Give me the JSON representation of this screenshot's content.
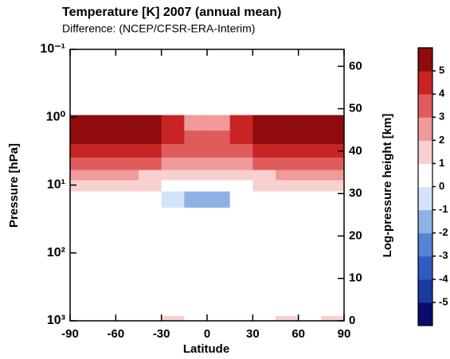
{
  "chart_data": {
    "type": "contour",
    "title": "Temperature [K] 2007 (annual mean)",
    "subtitle": "Difference: (NCEP/CFSR-ERA-Interim)",
    "xlabel": "Latitude",
    "ylabel": "Pressure [hPa]",
    "y2label": "Log-pressure height [km]",
    "log_y": true,
    "x": [
      -82.5,
      -67.5,
      -52.5,
      -37.5,
      -22.5,
      -7.5,
      7.5,
      22.5,
      37.5,
      52.5,
      67.5,
      82.5
    ],
    "y": [
      1000,
      700,
      300,
      100,
      30,
      15,
      10,
      7,
      5,
      3,
      2,
      1.2
    ],
    "z": [
      [
        0,
        0,
        0.5,
        0,
        1.2,
        0,
        0,
        0,
        0,
        1.2,
        0,
        1.1
      ],
      [
        0,
        0,
        0,
        0,
        0,
        0,
        0,
        0,
        0,
        0,
        0,
        0
      ],
      [
        0,
        0,
        0,
        0,
        0,
        0,
        0,
        0,
        0,
        0,
        0,
        0
      ],
      [
        0,
        0,
        0,
        0,
        0,
        0,
        0,
        0,
        0,
        0,
        0,
        0
      ],
      [
        0,
        0,
        0,
        0,
        0,
        0,
        0,
        0,
        0,
        0,
        0,
        0
      ],
      [
        0,
        0,
        0,
        0,
        -0.5,
        -1.2,
        -1.2,
        0,
        0,
        0,
        0,
        0
      ],
      [
        1.2,
        1.2,
        1.2,
        1,
        0.8,
        0.5,
        0.5,
        0.8,
        1,
        1.2,
        1.2,
        1.2
      ],
      [
        2.2,
        2.2,
        2,
        1.8,
        1.5,
        1.2,
        1.2,
        1.5,
        1.8,
        2,
        2.2,
        2.2
      ],
      [
        3.2,
        3.4,
        3.3,
        3,
        2.6,
        2.2,
        2.2,
        2.6,
        3,
        3.3,
        3.4,
        3.2
      ],
      [
        4.3,
        4.5,
        4.4,
        4.2,
        3.8,
        3.2,
        3.2,
        3.8,
        4.2,
        4.4,
        4.5,
        4.3
      ],
      [
        5.2,
        5.3,
        5.2,
        5,
        4.5,
        3.5,
        3.5,
        4.5,
        5,
        5.2,
        5.3,
        5.2
      ],
      [
        5.5,
        5.6,
        5.5,
        5.3,
        4.8,
        2.5,
        2.5,
        4.8,
        5.3,
        5.5,
        5.6,
        5.5
      ]
    ],
    "xlim": [
      -90,
      90
    ],
    "xticks": [
      -90,
      -60,
      -30,
      0,
      30,
      60,
      90
    ],
    "ylim": [
      1000,
      0.1
    ],
    "yticks": [
      {
        "value": 1000,
        "label": "10³"
      },
      {
        "value": 100,
        "label": "10²"
      },
      {
        "value": 10,
        "label": "10¹"
      },
      {
        "value": 1,
        "label": "10⁰"
      },
      {
        "value": 0.1,
        "label": "10⁻¹"
      }
    ],
    "y2lim": [
      0,
      64
    ],
    "y2ticks": [
      0,
      10,
      20,
      30,
      40,
      50,
      60
    ],
    "colorbar": {
      "clim": [
        -6,
        6
      ],
      "ticks": [
        -5,
        -4,
        -3,
        -2,
        -1,
        0,
        1,
        2,
        3,
        4,
        5
      ],
      "colors": [
        "#0b0b6e",
        "#1a3b9e",
        "#2f5cc0",
        "#5584d4",
        "#8fb2e6",
        "#d4e4f8",
        "#ffffff",
        "#f8d0d0",
        "#f09a9a",
        "#e05c5c",
        "#c82424",
        "#8e0c0c"
      ]
    }
  }
}
